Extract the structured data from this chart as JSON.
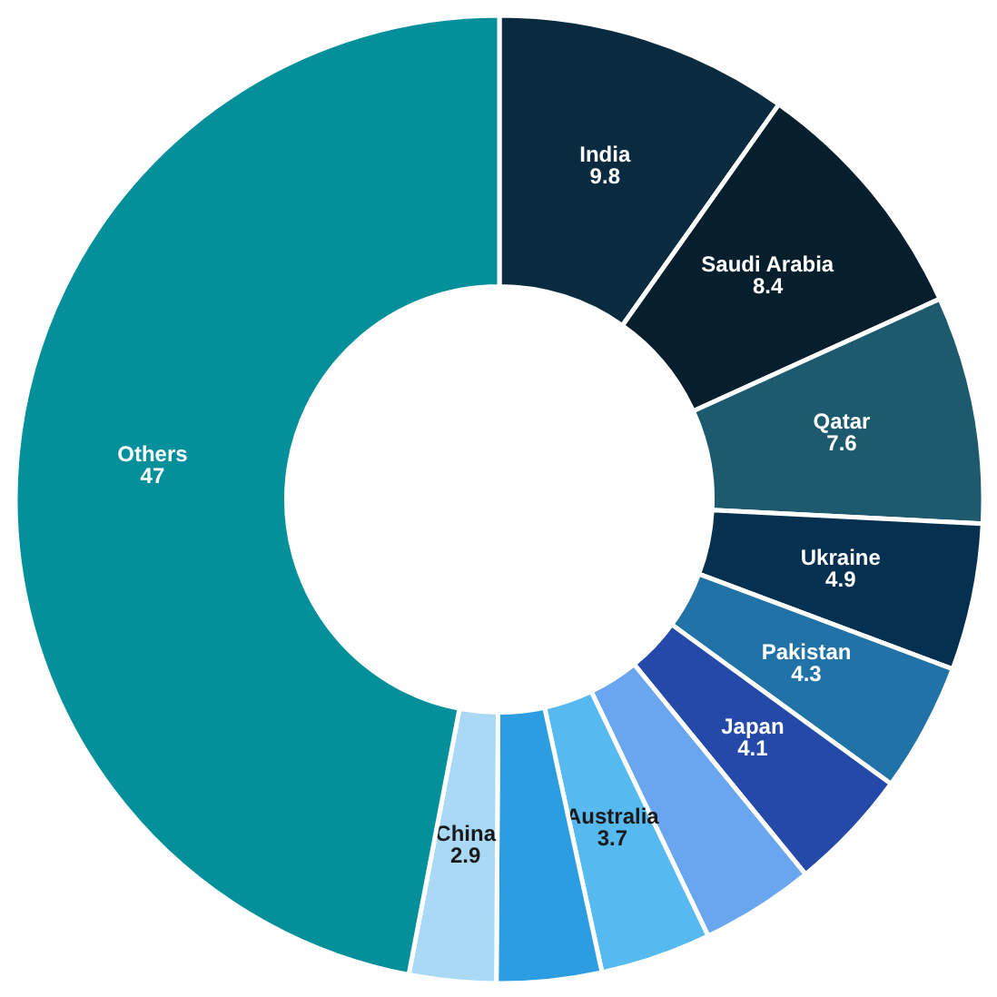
{
  "chart_data": {
    "type": "donut",
    "categories": [
      "India",
      "Saudi Arabia",
      "Qatar",
      "Ukraine",
      "Pakistan",
      "Japan",
      null,
      "Australia",
      null,
      "China",
      "Others"
    ],
    "values": [
      9.8,
      8.4,
      7.6,
      4.9,
      4.3,
      4.1,
      3.8,
      3.7,
      3.5,
      2.9,
      47
    ],
    "value_labels": [
      "9.8",
      "8.4",
      "7.6",
      "4.9",
      "4.3",
      "4.1",
      null,
      "3.7",
      null,
      "2.9",
      "47"
    ],
    "colors": [
      "#0a2b3f",
      "#071f2c",
      "#1e5a6e",
      "#053050",
      "#2172a6",
      "#2449a8",
      "#69a6ef",
      "#56baf0",
      "#2b9de0",
      "#a9d9f5",
      "#03909b"
    ],
    "legend": false
  }
}
